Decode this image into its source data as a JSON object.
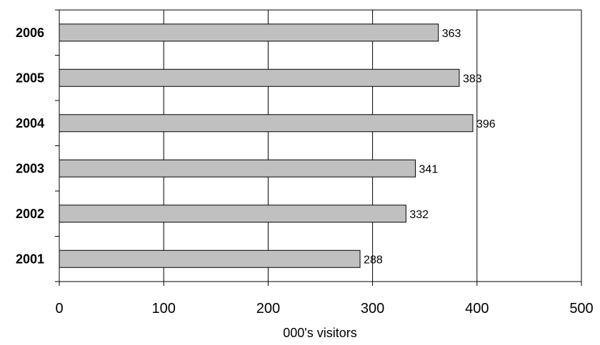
{
  "chart_data": {
    "type": "bar",
    "orientation": "horizontal",
    "categories": [
      "2006",
      "2005",
      "2004",
      "2003",
      "2002",
      "2001"
    ],
    "values": [
      363,
      383,
      396,
      341,
      332,
      288
    ],
    "title": "",
    "xlabel": "000's visitors",
    "ylabel": "",
    "xlim": [
      0,
      500
    ],
    "xticks": [
      "0",
      "100",
      "200",
      "300",
      "400",
      "500"
    ],
    "grid": "vertical",
    "bar_color": "#c0c0c0",
    "bar_edge_color": "#000000",
    "legend": "none"
  }
}
